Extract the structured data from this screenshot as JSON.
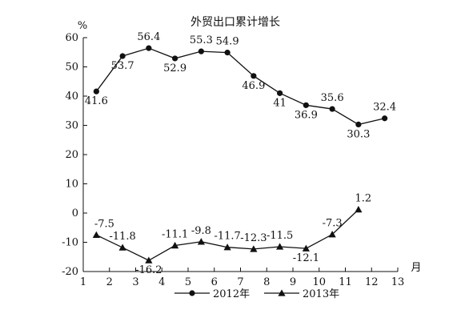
{
  "chart_data": {
    "type": "line",
    "title": "外贸出口累计增长",
    "ylabel": "%",
    "xlabel": "月",
    "x_ticks": [
      1,
      2,
      3,
      4,
      5,
      6,
      7,
      8,
      9,
      10,
      11,
      12,
      13
    ],
    "xlim": [
      1,
      13
    ],
    "y_ticks": [
      60,
      50,
      40,
      30,
      20,
      10,
      0,
      -10,
      -20
    ],
    "ylim": [
      -20,
      60
    ],
    "grid": false,
    "legend_position": "bottom",
    "series": [
      {
        "name": "2012年",
        "marker": "circle",
        "x": [
          1.5,
          2.5,
          3.5,
          4.5,
          5.5,
          6.5,
          7.5,
          8.5,
          9.5,
          10.5,
          11.5,
          12.5
        ],
        "values": [
          41.6,
          53.7,
          56.4,
          52.9,
          55.3,
          54.9,
          46.9,
          41,
          36.9,
          35.6,
          30.3,
          32.4
        ],
        "labels": [
          "41.6",
          "53.7",
          "56.4",
          "52.9",
          "55.3",
          "54.9",
          "46.9",
          "41",
          "36.9",
          "35.6",
          "30.3",
          "32.4"
        ]
      },
      {
        "name": "2013年",
        "marker": "triangle",
        "x": [
          1.5,
          2.5,
          3.5,
          4.5,
          5.5,
          6.5,
          7.5,
          8.5,
          9.5,
          10.5,
          11.5
        ],
        "values": [
          -7.5,
          -11.8,
          -16.2,
          -11.1,
          -9.8,
          -11.7,
          -12.3,
          -11.5,
          -12.1,
          -7.3,
          1.2
        ],
        "labels": [
          "-7.5",
          "-11.8",
          "-16.2",
          "-11.1",
          "-9.8",
          "-11.7",
          "-12.3",
          "-11.5",
          "-12.1",
          "-7.3",
          "1.2"
        ]
      }
    ]
  }
}
